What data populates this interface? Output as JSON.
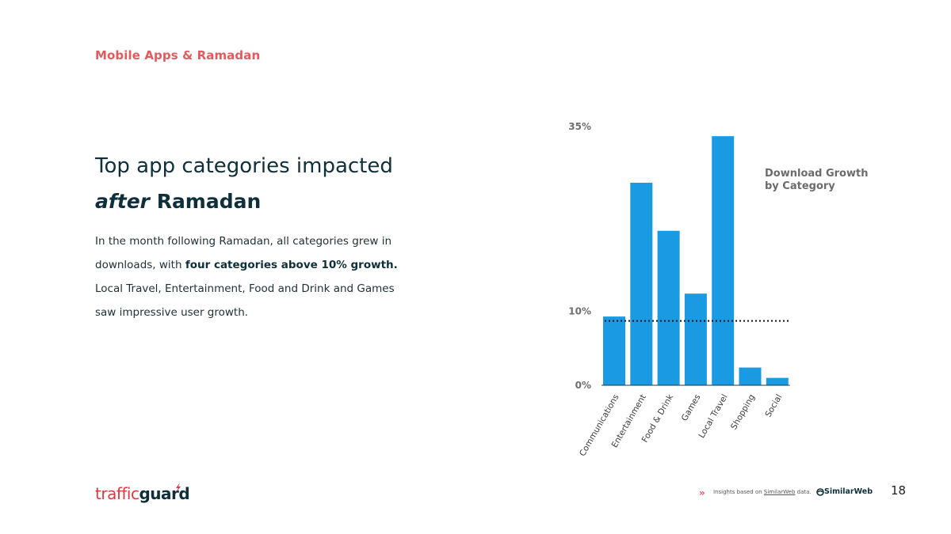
{
  "header": {
    "section_title": "Mobile Apps & Ramadan"
  },
  "heading": {
    "line1": "Top app categories impacted",
    "line2_em": "after",
    "line2_rest": " Ramadan"
  },
  "body": {
    "part1": "In the month following Ramadan, all categories grew in downloads, with ",
    "bold": "four categories above 10% growth.",
    "part2": " Local Travel, Entertainment, Food and Drink and Games saw impressive user growth."
  },
  "legend": {
    "line1": "Download Growth",
    "line2": "by Category"
  },
  "chart_data": {
    "type": "bar",
    "title": "Download Growth by Category",
    "categories": [
      "Communications",
      "Entertainment",
      "Food & Drink",
      "Games",
      "Local Travel",
      "Shopping",
      "Social"
    ],
    "values": [
      9.3,
      27.4,
      20.9,
      12.4,
      33.7,
      2.4,
      1.0
    ],
    "ylim": [
      0,
      35
    ],
    "y_tick_labels": [
      {
        "value": 0,
        "label": "0%"
      },
      {
        "value": 10,
        "label": "10%"
      },
      {
        "value": 35,
        "label": "35%"
      }
    ],
    "reference_line": {
      "value": 10,
      "style": "dotted"
    },
    "bar_color": "#1a9ae2",
    "xlabel": "",
    "ylabel": ""
  },
  "footer": {
    "logo_part1": "traffic",
    "logo_part2": "guard",
    "chevron": "»",
    "note_before": "Insights based on ",
    "note_link": "SimilarWeb",
    "note_after": " data.",
    "brand": "SimilarWeb",
    "page_number": "18"
  },
  "colors": {
    "accent": "#e25a5f",
    "bar": "#1a9ae2",
    "text": "#0f2f3a"
  }
}
